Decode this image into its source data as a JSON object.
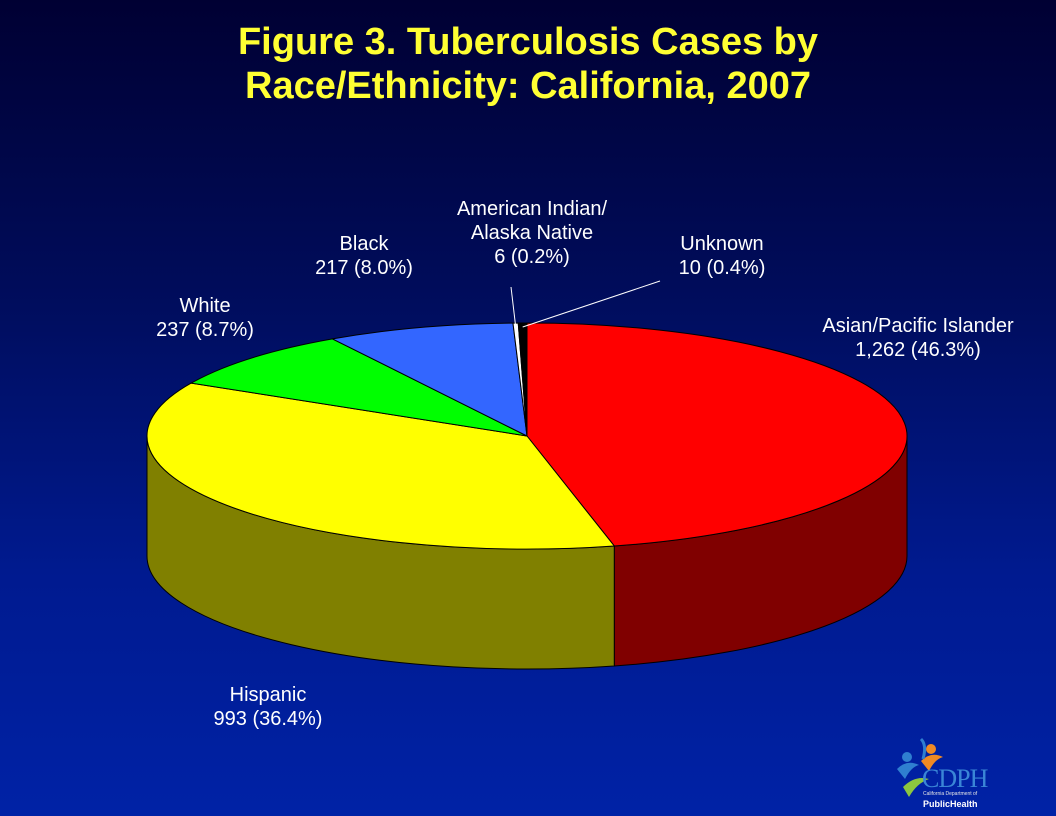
{
  "title_line1": "Figure 3. Tuberculosis Cases by",
  "title_line2": "Race/Ethnicity: California, 2007",
  "chart_data": {
    "type": "pie",
    "title": "Figure 3. Tuberculosis Cases by Race/Ethnicity: California, 2007",
    "slices": [
      {
        "label": "Asian/Pacific Islander",
        "value": 1262,
        "text": "1,262 (46.3%)",
        "color": "#ff0000",
        "side_color": "#800000"
      },
      {
        "label": "Hispanic",
        "value": 993,
        "text": "993 (36.4%)",
        "color": "#ffff00",
        "side_color": "#808000"
      },
      {
        "label": "White",
        "value": 237,
        "text": "237 (8.7%)",
        "color": "#00ff00",
        "side_color": "#008000"
      },
      {
        "label": "Black",
        "value": 217,
        "text": "217 (8.0%)",
        "color": "#3366ff",
        "side_color": "#1a3380"
      },
      {
        "label_lines": [
          "American Indian/",
          "Alaska Native"
        ],
        "label": "American Indian/ Alaska Native",
        "value": 6,
        "text": "6 (0.2%)",
        "color": "#ffffff",
        "side_color": "#808080"
      },
      {
        "label": "Unknown",
        "value": 10,
        "text": "10 (0.4%)",
        "color": "#000000",
        "side_color": "#000000"
      }
    ]
  },
  "logo": {
    "name": "CDPH",
    "subtitle": "California Department of",
    "tagline": "PublicHealth"
  },
  "colors": {
    "title": "#ffff33",
    "label": "#ffffff",
    "background_top": "#000033",
    "background_bottom": "#0022a6"
  }
}
